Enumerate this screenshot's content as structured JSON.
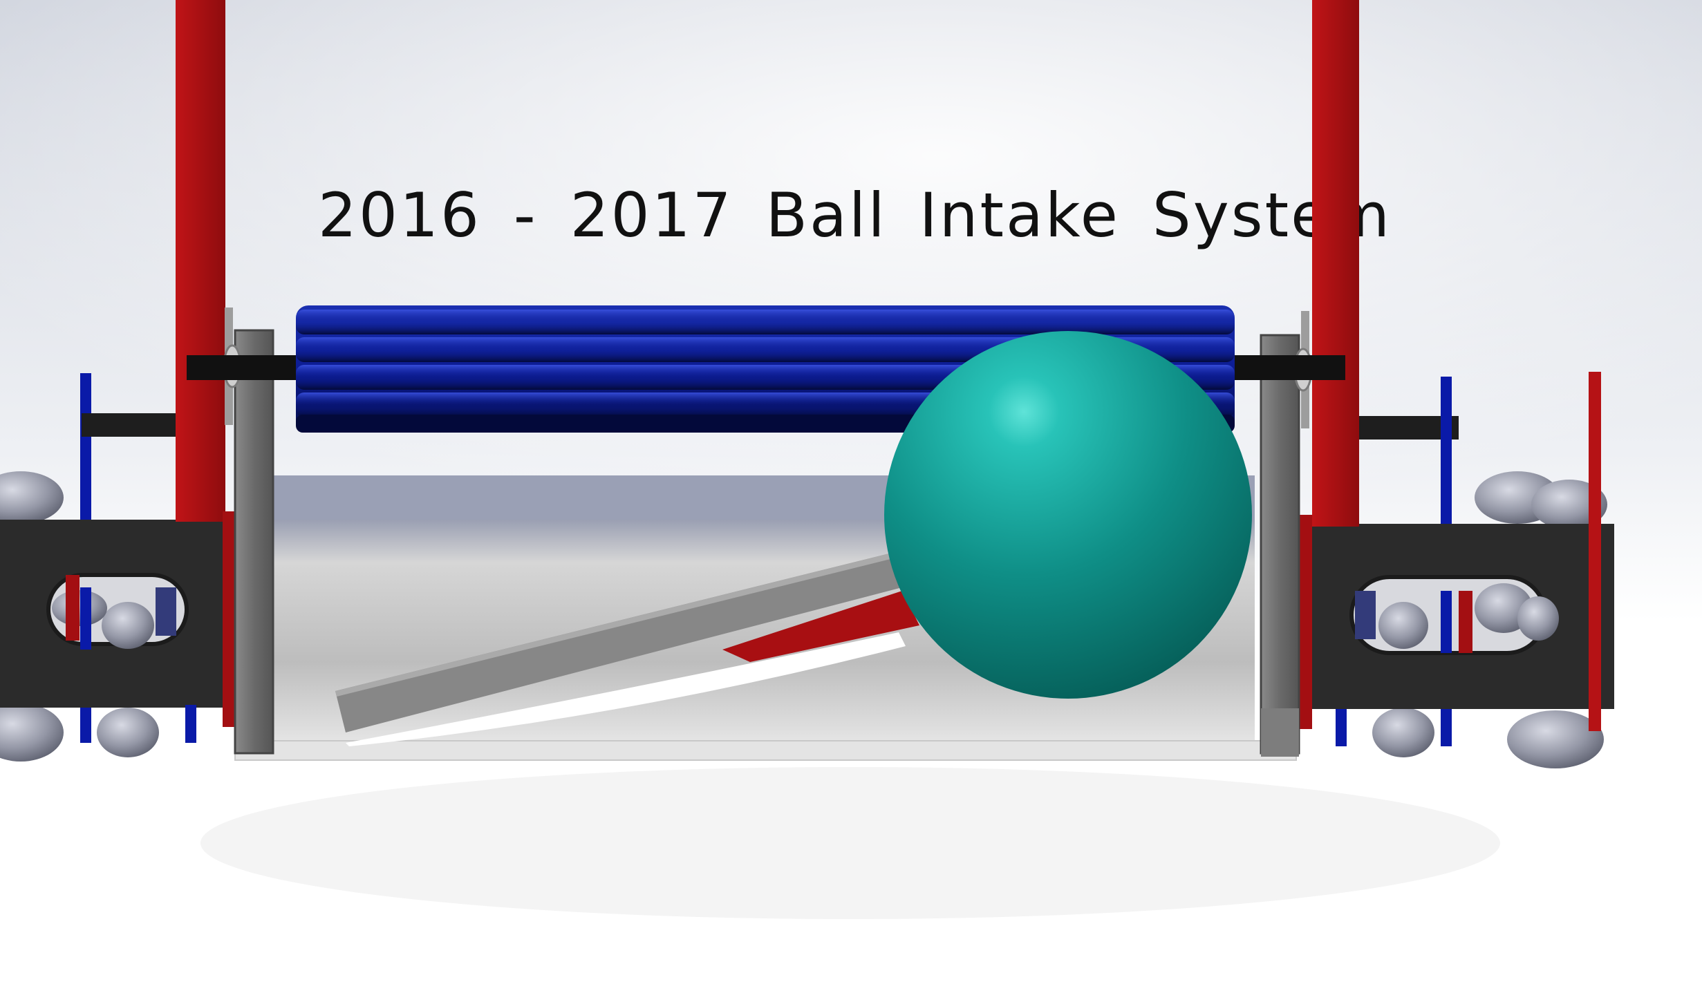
{
  "title": "2016 - 2017 Ball Intake System",
  "colors": {
    "background_top": "#d7dae2",
    "background_bottom": "#ffffff",
    "frame_red": "#a80f12",
    "roller_blue": "#0a1d8c",
    "ball_teal": "#14968e",
    "plate_gray": "#6f6f6f",
    "chassis_dark": "#2b2b2b",
    "wheel_gray": "#8c8f9e"
  },
  "icons": [
    "roller",
    "ball",
    "mecanum-wheel",
    "side-plate",
    "ramp"
  ]
}
